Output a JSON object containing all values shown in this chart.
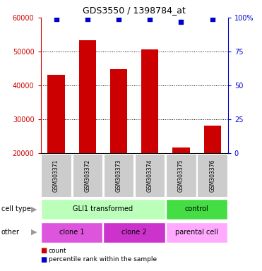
{
  "title": "GDS3550 / 1398784_at",
  "samples": [
    "GSM303371",
    "GSM303372",
    "GSM303373",
    "GSM303374",
    "GSM303375",
    "GSM303376"
  ],
  "counts": [
    43200,
    53400,
    44700,
    50600,
    21700,
    28200
  ],
  "percentiles": [
    99,
    99,
    99,
    99,
    97,
    99
  ],
  "ylim_left": [
    20000,
    60000
  ],
  "yticks_left": [
    20000,
    30000,
    40000,
    50000,
    60000
  ],
  "ylim_right": [
    0,
    100
  ],
  "yticks_right": [
    0,
    25,
    50,
    75,
    100
  ],
  "bar_color": "#cc0000",
  "dot_color": "#0000cc",
  "bar_width": 0.55,
  "cell_type_groups": [
    {
      "label": "GLI1 transformed",
      "start": 0,
      "end": 4,
      "color": "#bbffbb"
    },
    {
      "label": "control",
      "start": 4,
      "end": 6,
      "color": "#44dd44"
    }
  ],
  "other_groups": [
    {
      "label": "clone 1",
      "start": 0,
      "end": 2,
      "color": "#dd55dd"
    },
    {
      "label": "clone 2",
      "start": 2,
      "end": 4,
      "color": "#cc33cc"
    },
    {
      "label": "parental cell",
      "start": 4,
      "end": 6,
      "color": "#ffaaff"
    }
  ],
  "row_label_cell_type": "cell type",
  "row_label_other": "other",
  "legend_count": "count",
  "legend_percentile": "percentile rank within the sample",
  "left_tick_color": "#cc0000",
  "right_tick_color": "#0000cc",
  "sample_box_color": "#cccccc",
  "bg_color": "#ffffff"
}
